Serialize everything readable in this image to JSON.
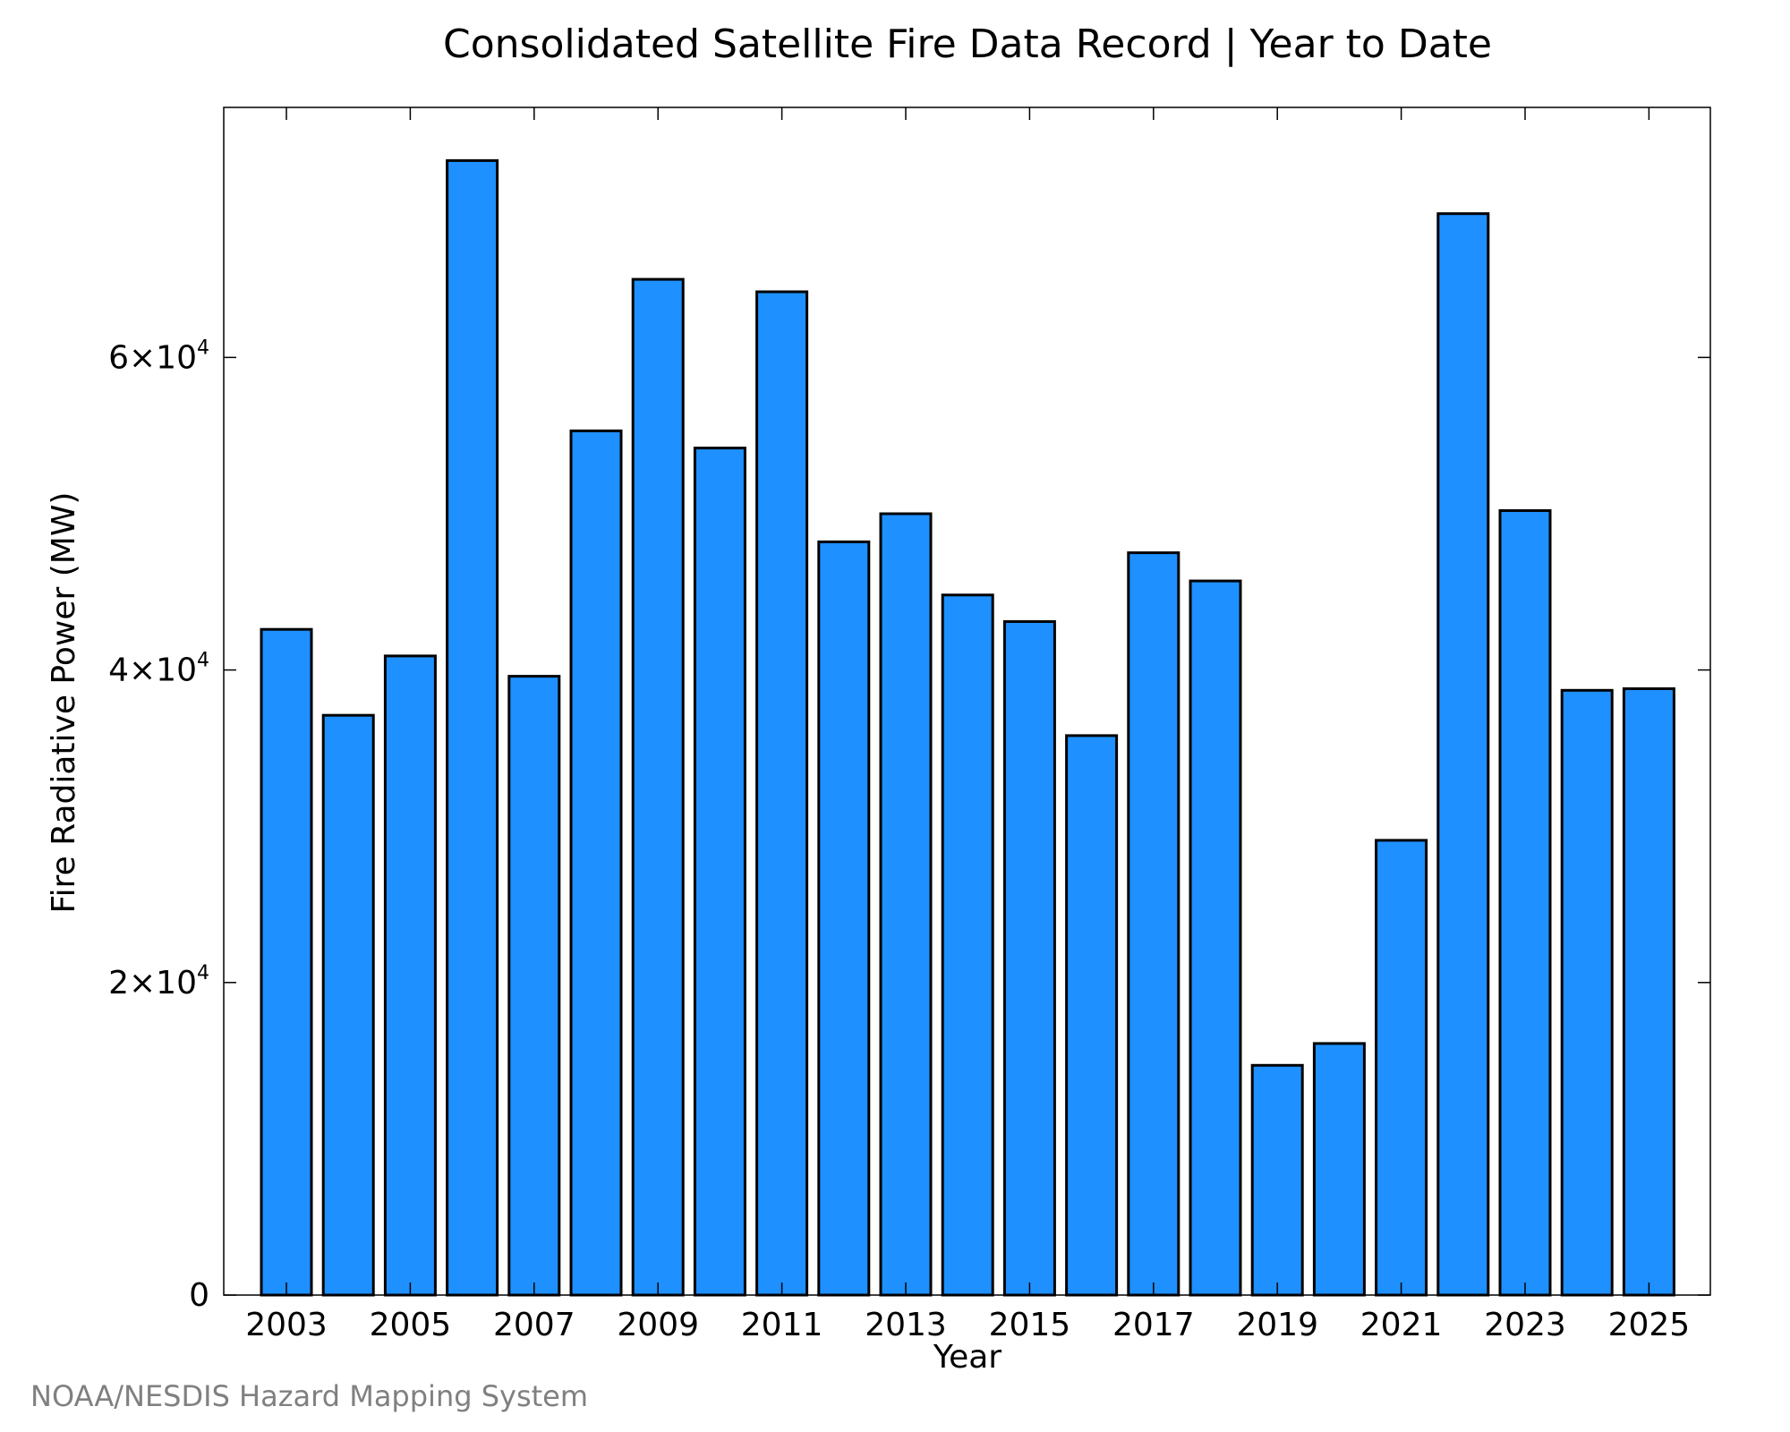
{
  "credit": "NOAA/NESDIS Hazard Mapping System",
  "colors": {
    "bar_fill": "#1e90ff",
    "bar_stroke": "#000000",
    "credit": "#808080"
  },
  "chart_data": {
    "type": "bar",
    "title": "Consolidated Satellite Fire Data Record | Year to Date",
    "xlabel": "Year",
    "ylabel": "Fire Radiative Power (MW)",
    "categories": [
      "2003",
      "2004",
      "2005",
      "2006",
      "2007",
      "2008",
      "2009",
      "2010",
      "2011",
      "2012",
      "2013",
      "2014",
      "2015",
      "2016",
      "2017",
      "2018",
      "2019",
      "2020",
      "2021",
      "2022",
      "2023",
      "2024",
      "2025"
    ],
    "values": [
      42600,
      37100,
      40900,
      72600,
      39600,
      55300,
      65000,
      54200,
      64200,
      48200,
      50000,
      44800,
      43100,
      35800,
      47500,
      45700,
      14700,
      16100,
      29100,
      69200,
      50200,
      38700,
      38800
    ],
    "x_tick_labels": [
      "2003",
      "2005",
      "2007",
      "2009",
      "2011",
      "2013",
      "2015",
      "2017",
      "2019",
      "2021",
      "2023",
      "2025"
    ],
    "y_ticks": [
      {
        "value": 0,
        "mantissa": "0",
        "exponent": ""
      },
      {
        "value": 20000,
        "mantissa": "2×10",
        "exponent": "4"
      },
      {
        "value": 40000,
        "mantissa": "4×10",
        "exponent": "4"
      },
      {
        "value": 60000,
        "mantissa": "6×10",
        "exponent": "4"
      }
    ],
    "ylim": [
      0,
      76000
    ],
    "grid": false,
    "legend": "none"
  }
}
